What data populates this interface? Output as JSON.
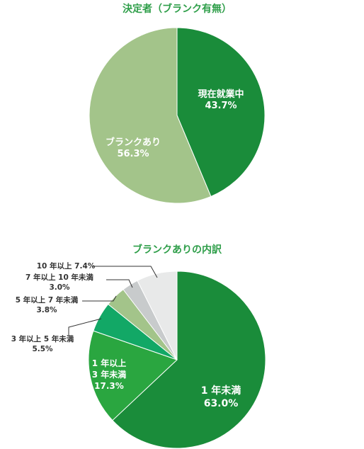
{
  "chart_data": [
    {
      "type": "pie",
      "title": "決定者（ブランク有無）",
      "slices": [
        {
          "label_lines": [
            "現在就業中"
          ],
          "value": 43.7,
          "value_text": "43.7%",
          "color": "#1a8c3a"
        },
        {
          "label_lines": [
            "ブランクあり"
          ],
          "value": 56.3,
          "value_text": "56.3%",
          "color": "#a3c48a"
        }
      ]
    },
    {
      "type": "pie",
      "title": "ブランクありの内訳",
      "slices": [
        {
          "label_lines": [
            "1 年未満"
          ],
          "value": 63.0,
          "value_text": "63.0%",
          "color": "#1a8c3a"
        },
        {
          "label_lines": [
            "1 年以上",
            "3 年未満"
          ],
          "value": 17.3,
          "value_text": "17.3%",
          "color": "#2aa640"
        },
        {
          "label_lines": [
            "3 年以上 5 年未満"
          ],
          "value": 5.5,
          "value_text": "5.5%",
          "color": "#12a866"
        },
        {
          "label_lines": [
            "5 年以上 7 年未満"
          ],
          "value": 3.8,
          "value_text": "3.8%",
          "color": "#a3c48a"
        },
        {
          "label_lines": [
            "7 年以上 10 年未満"
          ],
          "value": 3.0,
          "value_text": "3.0%",
          "color": "#c8cbcc"
        },
        {
          "label_lines": [
            "10 年以上"
          ],
          "value": 7.4,
          "value_text": "7.4%",
          "color": "#e8e9e9"
        }
      ]
    }
  ]
}
